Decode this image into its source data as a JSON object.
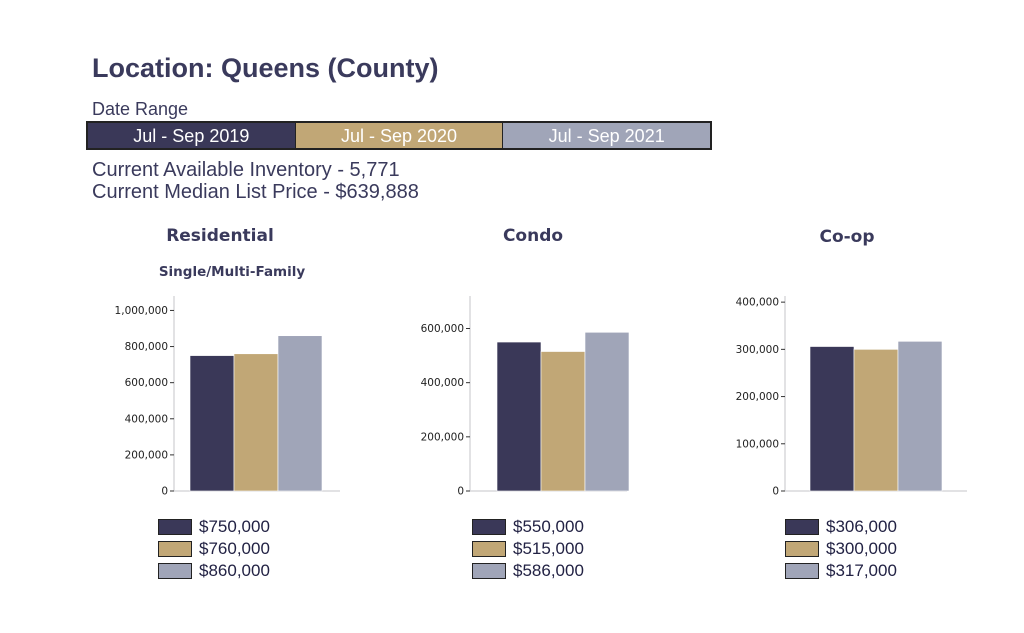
{
  "header": {
    "title": "Location: Queens (County)",
    "date_range_label": "Date Range",
    "periods": [
      {
        "label": "Jul - Sep 2019",
        "color": "#3a3858"
      },
      {
        "label": "Jul - Sep 2020",
        "color": "#c1a776"
      },
      {
        "label": "Jul - Sep 2021",
        "color": "#a0a5b8"
      }
    ],
    "inventory": "Current Available Inventory - 5,771",
    "median_price": "Current Median List Price - $639,888"
  },
  "chart_data": [
    {
      "type": "bar",
      "title": "Residential",
      "subtitle": "Single/Multi-Family",
      "categories": [
        "Jul - Sep 2019",
        "Jul - Sep 2020",
        "Jul - Sep 2021"
      ],
      "values": [
        750000,
        760000,
        860000
      ],
      "value_labels": [
        "$750,000",
        "$760,000",
        "$860,000"
      ],
      "yticks": [
        "0",
        "200,000",
        "400,000",
        "600,000",
        "800,000",
        "1,000,000"
      ],
      "ylim": [
        0,
        1080000
      ],
      "grid": false,
      "legend": "bottom"
    },
    {
      "type": "bar",
      "title": "Condo",
      "categories": [
        "Jul - Sep 2019",
        "Jul - Sep 2020",
        "Jul - Sep 2021"
      ],
      "values": [
        550000,
        515000,
        586000
      ],
      "value_labels": [
        "$550,000",
        "$515,000",
        "$586,000"
      ],
      "yticks": [
        "0",
        "200,000",
        "400,000",
        "600,000"
      ],
      "ylim": [
        0,
        720000
      ],
      "grid": false,
      "legend": "bottom"
    },
    {
      "type": "bar",
      "title": "Co-op",
      "categories": [
        "Jul - Sep 2019",
        "Jul - Sep 2020",
        "Jul - Sep 2021"
      ],
      "values": [
        306000,
        300000,
        317000
      ],
      "value_labels": [
        "$306,000",
        "$300,000",
        "$317,000"
      ],
      "yticks": [
        "0",
        "100,000",
        "200,000",
        "300,000",
        "400,000"
      ],
      "ylim": [
        0,
        413000
      ],
      "grid": false,
      "legend": "bottom"
    }
  ]
}
